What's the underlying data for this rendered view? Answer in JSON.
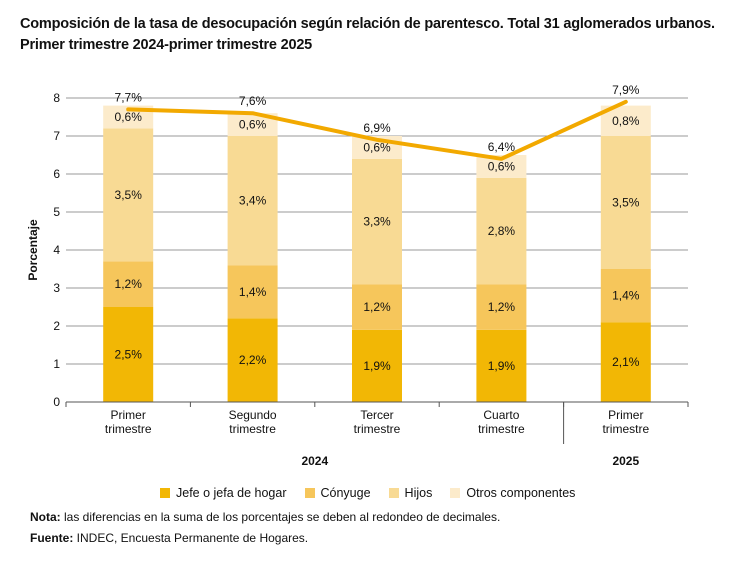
{
  "title": {
    "line1": "Composición de la tasa de desocupación según relación de parentesco. Total 31 aglomerados urbanos.",
    "line2": "Primer trimestre 2024-primer trimestre 2025"
  },
  "chart_data": {
    "type": "bar",
    "stacked": true,
    "categories": [
      "Primer trimestre",
      "Segundo trimestre",
      "Tercer trimestre",
      "Cuarto trimestre",
      "Primer trimestre"
    ],
    "category_lines": [
      [
        "Primer",
        "trimestre"
      ],
      [
        "Segundo",
        "trimestre"
      ],
      [
        "Tercer",
        "trimestre"
      ],
      [
        "Cuarto",
        "trimestre"
      ],
      [
        "Primer",
        "trimestre"
      ]
    ],
    "groups": [
      {
        "label": "2024",
        "categories": [
          0,
          1,
          2,
          3
        ]
      },
      {
        "label": "2025",
        "categories": [
          4
        ]
      }
    ],
    "series": [
      {
        "name": "Jefe o jefa de hogar",
        "color": "#F2B705",
        "values": [
          2.5,
          2.2,
          1.9,
          1.9,
          2.1
        ],
        "labels": [
          "2,5%",
          "2,2%",
          "1,9%",
          "1,9%",
          "2,1%"
        ]
      },
      {
        "name": "Cónyuge",
        "color": "#F6C65B",
        "values": [
          1.2,
          1.4,
          1.2,
          1.2,
          1.4
        ],
        "labels": [
          "1,2%",
          "1,4%",
          "1,2%",
          "1,2%",
          "1,4%"
        ]
      },
      {
        "name": "Hijos",
        "color": "#F8DA94",
        "values": [
          3.5,
          3.4,
          3.3,
          2.8,
          3.5
        ],
        "labels": [
          "3,5%",
          "3,4%",
          "3,3%",
          "2,8%",
          "3,5%"
        ]
      },
      {
        "name": "Otros componentes",
        "color": "#FCEBCB",
        "values": [
          0.6,
          0.6,
          0.6,
          0.6,
          0.8
        ],
        "labels": [
          "0,6%",
          "0,6%",
          "0,6%",
          "0,6%",
          "0,8%"
        ]
      }
    ],
    "total_line": {
      "color": "#F2A900",
      "values": [
        7.7,
        7.6,
        6.9,
        6.4,
        7.9
      ],
      "labels": [
        "7,7%",
        "7,6%",
        "6,9%",
        "6,4%",
        "7,9%"
      ]
    },
    "ylabel": "Porcentaje",
    "ylim": [
      0,
      8
    ],
    "yticks": [
      0,
      1,
      2,
      3,
      4,
      5,
      6,
      7,
      8
    ],
    "grid": true
  },
  "legend": {
    "items": [
      {
        "label": "Jefe o jefa de hogar",
        "color": "#F2B705"
      },
      {
        "label": "Cónyuge",
        "color": "#F6C65B"
      },
      {
        "label": "Hijos",
        "color": "#F8DA94"
      },
      {
        "label": "Otros componentes",
        "color": "#FCEBCB"
      }
    ]
  },
  "notes": {
    "nota_label": "Nota:",
    "nota_text": " las diferencias en la suma de los porcentajes se deben al redondeo de decimales.",
    "fuente_label": "Fuente:",
    "fuente_text": " INDEC, Encuesta Permanente de Hogares."
  }
}
